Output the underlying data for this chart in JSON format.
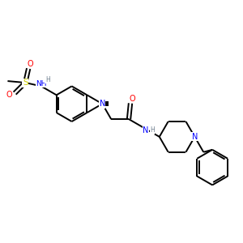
{
  "bg_color": "#ffffff",
  "atom_colors": {
    "C": "#000000",
    "N": "#0000ff",
    "O": "#ff0000",
    "S": "#cccc00",
    "H": "#708090"
  },
  "figsize": [
    3.0,
    3.0
  ],
  "dpi": 100
}
